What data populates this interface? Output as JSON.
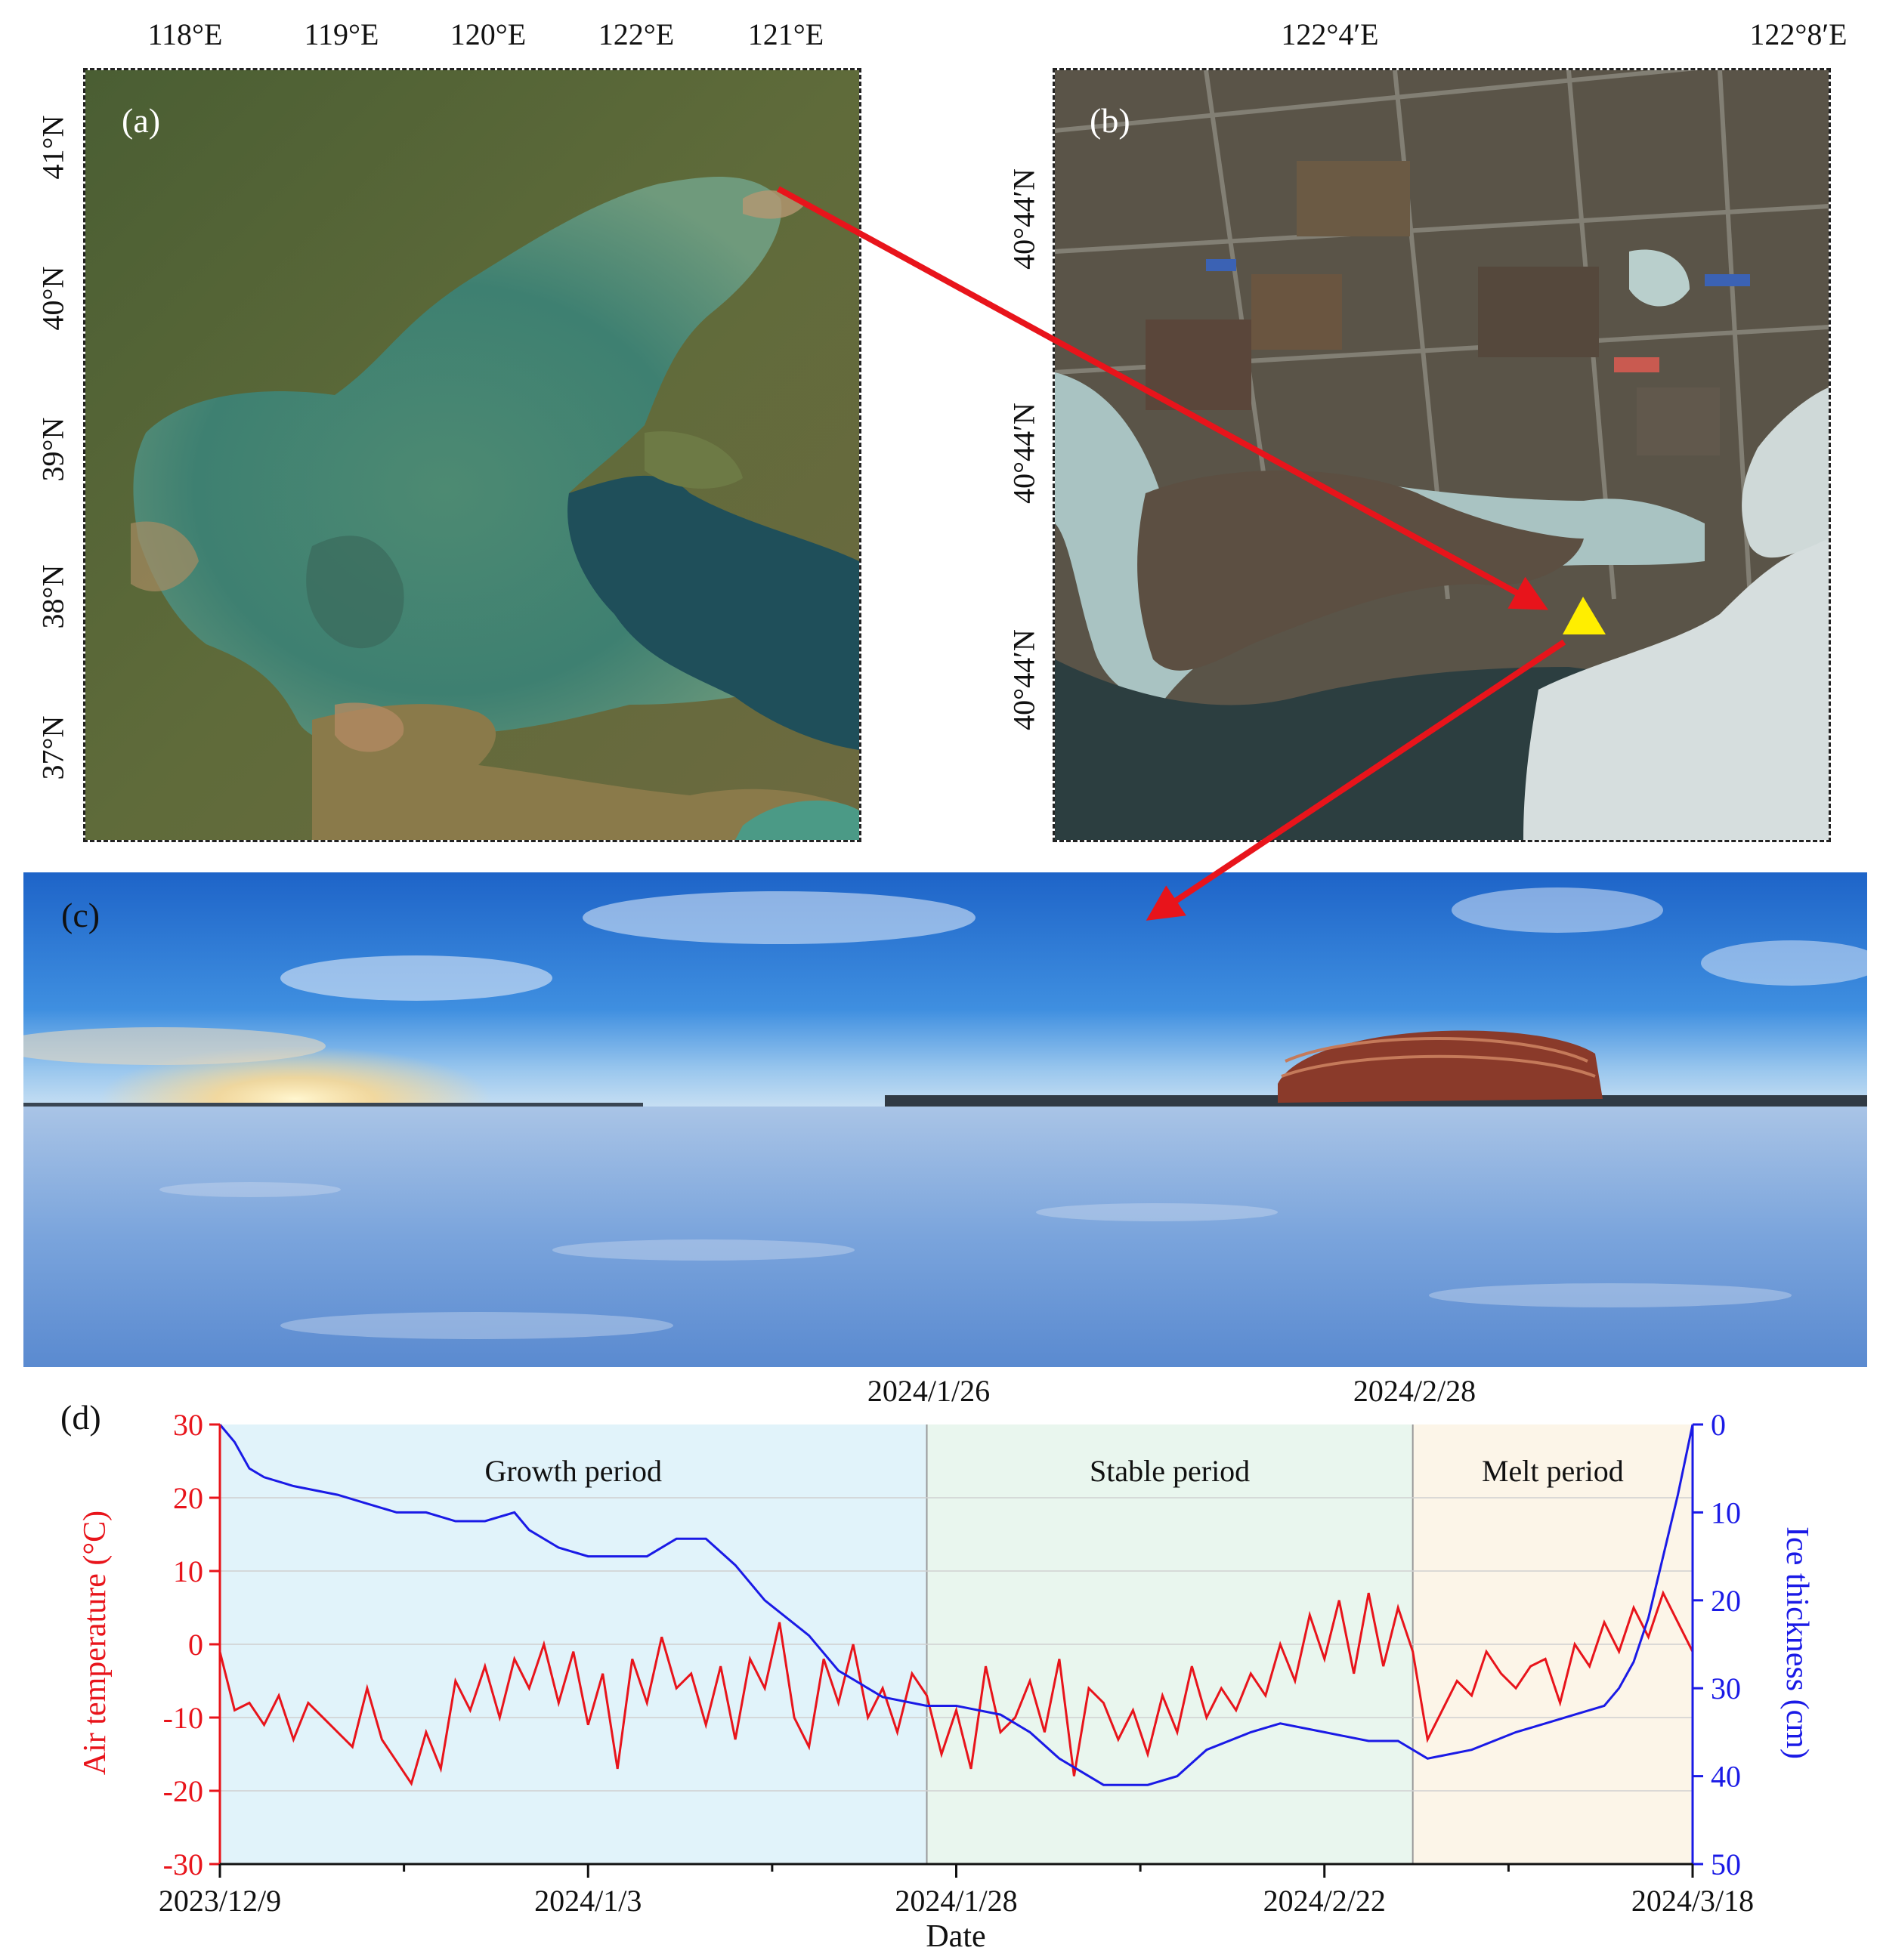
{
  "panel_a": {
    "label": "(a)",
    "lon_ticks": [
      "118°E",
      "119°E",
      "120°E",
      "122°E",
      "121°E"
    ],
    "lat_ticks": [
      "41°N",
      "40°N",
      "39°N",
      "38°N",
      "37°N"
    ]
  },
  "panel_b": {
    "label": "(b)",
    "lon_ticks": [
      "122°4′E",
      "122°8′E"
    ],
    "lat_ticks": [
      "40°44′N",
      "40°44′N",
      "40°44′N"
    ]
  },
  "panel_c": {
    "label": "(c)"
  },
  "panel_d": {
    "label": "(d)",
    "top_dates": [
      "2024/1/26",
      "2024/2/28"
    ],
    "periods": [
      "Growth period",
      "Stable period",
      "Melt period"
    ],
    "left_ylabel": "Air temperature (°C)",
    "right_ylabel": "Ice thickness (cm)",
    "xlabel": "Date",
    "x_tick_labels": [
      "2023/12/9",
      "2024/1/3",
      "2024/1/28",
      "2024/2/22",
      "2024/3/18"
    ],
    "left_ticks": [
      "30",
      "20",
      "10",
      "0",
      "-10",
      "-20",
      "-30"
    ],
    "right_ticks": [
      "0",
      "10",
      "20",
      "30",
      "40",
      "50"
    ]
  },
  "colors": {
    "temperature": "#e8141b",
    "thickness": "#1a1ae6",
    "growth_bg": "#e1f3fa",
    "stable_bg": "#e9f6ee",
    "melt_bg": "#fcf5e8",
    "arrow": "#e8141b",
    "marker": "#ffee00"
  },
  "chart_data": {
    "type": "line",
    "x_start": "2023/12/9",
    "x_end": "2024/3/18",
    "x_ticks": [
      "2023/12/9",
      "2024/1/3",
      "2024/1/28",
      "2024/2/22",
      "2024/3/18"
    ],
    "period_boundaries": [
      "2024/1/26",
      "2024/2/28"
    ],
    "y_left_lim": [
      -30,
      30
    ],
    "y_right_lim": [
      50,
      0
    ],
    "series": [
      {
        "name": "Air temperature",
        "axis": "left",
        "days": [
          0,
          1,
          2,
          3,
          4,
          5,
          6,
          7,
          8,
          9,
          10,
          11,
          12,
          13,
          14,
          15,
          16,
          17,
          18,
          19,
          20,
          21,
          22,
          23,
          24,
          25,
          26,
          27,
          28,
          29,
          30,
          31,
          32,
          33,
          34,
          35,
          36,
          37,
          38,
          39,
          40,
          41,
          42,
          43,
          44,
          45,
          46,
          47,
          48,
          49,
          50,
          51,
          52,
          53,
          54,
          55,
          56,
          57,
          58,
          59,
          60,
          61,
          62,
          63,
          64,
          65,
          66,
          67,
          68,
          69,
          70,
          71,
          72,
          73,
          74,
          75,
          76,
          77,
          78,
          79,
          80,
          81,
          82,
          83,
          84,
          85,
          86,
          87,
          88,
          89,
          90,
          91,
          92,
          93,
          94,
          95,
          96,
          97,
          98,
          99,
          100
        ],
        "values": [
          -1,
          -9,
          -8,
          -11,
          -7,
          -13,
          -8,
          -10,
          -12,
          -14,
          -6,
          -13,
          -16,
          -19,
          -12,
          -17,
          -5,
          -9,
          -3,
          -10,
          -2,
          -6,
          0,
          -8,
          -1,
          -11,
          -4,
          -17,
          -2,
          -8,
          1,
          -6,
          -4,
          -11,
          -3,
          -13,
          -2,
          -6,
          3,
          -10,
          -14,
          -2,
          -8,
          0,
          -10,
          -6,
          -12,
          -4,
          -7,
          -15,
          -9,
          -17,
          -3,
          -12,
          -10,
          -5,
          -12,
          -2,
          -18,
          -6,
          -8,
          -13,
          -9,
          -15,
          -7,
          -12,
          -3,
          -10,
          -6,
          -9,
          -4,
          -7,
          0,
          -5,
          4,
          -2,
          6,
          -4,
          7,
          -3,
          5,
          -1,
          -13,
          -9,
          -5,
          -7,
          -1,
          -4,
          -6,
          -3,
          -2,
          -8,
          0,
          -3,
          3,
          -1,
          5,
          1,
          7,
          3,
          -1
        ]
      },
      {
        "name": "Ice thickness",
        "axis": "right",
        "days": [
          0,
          1,
          2,
          3,
          5,
          8,
          10,
          12,
          14,
          16,
          18,
          20,
          21,
          23,
          25,
          27,
          29,
          31,
          33,
          35,
          37,
          40,
          42,
          45,
          48,
          50,
          53,
          55,
          57,
          60,
          63,
          65,
          67,
          70,
          72,
          75,
          78,
          80,
          82,
          85,
          88,
          90,
          92,
          94,
          95,
          96,
          97,
          98,
          99,
          100
        ],
        "values": [
          0,
          2,
          5,
          6,
          7,
          8,
          9,
          10,
          10,
          11,
          11,
          10,
          12,
          14,
          15,
          15,
          15,
          13,
          13,
          16,
          20,
          24,
          28,
          31,
          32,
          32,
          33,
          35,
          38,
          41,
          41,
          40,
          37,
          35,
          34,
          35,
          36,
          36,
          38,
          37,
          35,
          34,
          33,
          32,
          30,
          27,
          22,
          15,
          8,
          0
        ]
      }
    ]
  }
}
